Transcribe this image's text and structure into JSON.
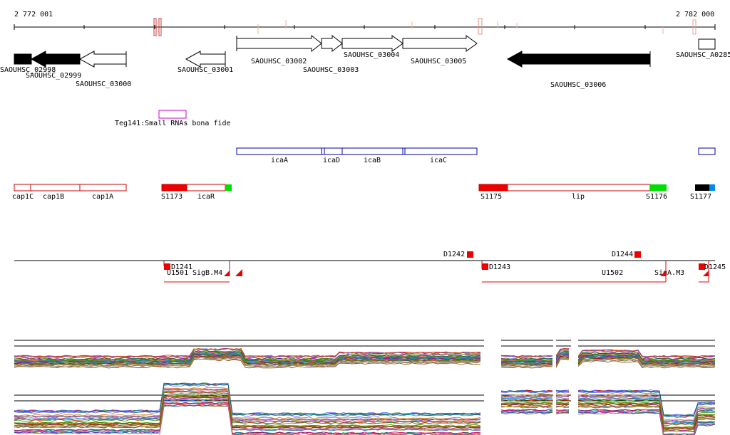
{
  "ruler": {
    "start_label": "2 772 001",
    "end_label": "2 782 000"
  },
  "genes": [
    {
      "label": "SAOUHSC_02998",
      "strand": "-",
      "filled": true
    },
    {
      "label": "SAOUHSC_02999",
      "strand": "-",
      "filled": true
    },
    {
      "label": "SAOUHSC_03000",
      "strand": "-",
      "filled": false
    },
    {
      "label": "SAOUHSC_03001",
      "strand": "-",
      "filled": false
    },
    {
      "label": "SAOUHSC_03002",
      "strand": "+",
      "filled": false
    },
    {
      "label": "SAOUHSC_03003",
      "strand": "+",
      "filled": false
    },
    {
      "label": "SAOUHSC_03004",
      "strand": "+",
      "filled": false
    },
    {
      "label": "SAOUHSC_03005",
      "strand": "+",
      "filled": false
    },
    {
      "label": "SAOUHSC_03006",
      "strand": "-",
      "filled": true
    },
    {
      "label": "SAOUHSC_A0285",
      "strand": "+",
      "filled": false
    }
  ],
  "rna": {
    "label": "Teg141:Small RNAs bona fide",
    "color": "#cc00cc"
  },
  "operon_blue": {
    "color": "#0000aa",
    "labels": [
      "icaA",
      "icaD",
      "icaB",
      "icaC"
    ]
  },
  "operon_red": {
    "color": "#cc0000",
    "labels": [
      "cap1C",
      "cap1B",
      "cap1A",
      "S1173",
      "icaR",
      "S1175",
      "lip",
      "S1176",
      "S1177"
    ]
  },
  "transcripts": {
    "labels": [
      "D1241",
      "U1501",
      "SigB.M4",
      "D1242",
      "D1243",
      "D1244",
      "U1502",
      "SigA.M3",
      "D1245"
    ]
  },
  "colors": {
    "red": "#ee0000",
    "green": "#00dd00",
    "blue": "#0088ee",
    "black": "#000000",
    "pink": "#e8a0a0"
  }
}
